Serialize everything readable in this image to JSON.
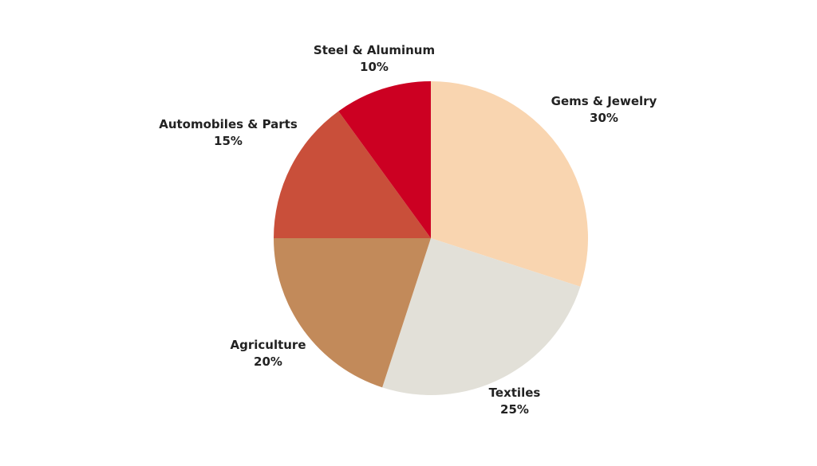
{
  "chart_data": {
    "type": "pie",
    "slices": [
      {
        "label": "Gems & Jewelry",
        "value": 30,
        "value_label": "30%",
        "color": "#F9D5B0"
      },
      {
        "label": "Textiles",
        "value": 25,
        "value_label": "25%",
        "color": "#E2E0D8"
      },
      {
        "label": "Agriculture",
        "value": 20,
        "value_label": "20%",
        "color": "#C28A5A"
      },
      {
        "label": "Automobiles & Parts",
        "value": 15,
        "value_label": "15%",
        "color": "#C94F3A"
      },
      {
        "label": "Steel & Aluminum",
        "value": 10,
        "value_label": "10%",
        "color": "#CC0022"
      }
    ],
    "start_angle": "12 o'clock",
    "direction": "clockwise",
    "legend": "none",
    "labels": "outside"
  }
}
